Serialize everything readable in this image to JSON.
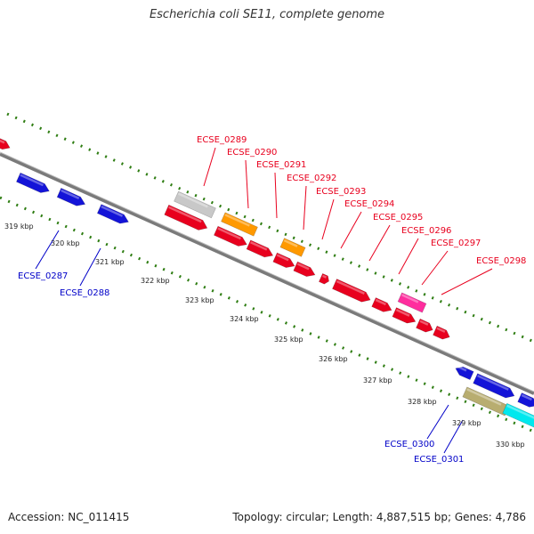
{
  "title": "Escherichia coli SE11, complete genome",
  "footer": {
    "accession": "Accession: NC_011415",
    "stats": "Topology: circular; Length: 4,887,515 bp; Genes: 4,786"
  },
  "colors": {
    "backbone": "#808080",
    "gc_dots": "#2e7d12",
    "label_red": "#e8001e",
    "label_blue": "#0000c8"
  },
  "ticks": [
    "319 kbp",
    "320 kbp",
    "321 kbp",
    "322 kbp",
    "323 kbp",
    "324 kbp",
    "325 kbp",
    "326 kbp",
    "327 kbp",
    "328 kbp",
    "329 kbp",
    "330 kbp"
  ],
  "gene_labels": [
    {
      "text": "ECSE_0289",
      "color": "red"
    },
    {
      "text": "ECSE_0290",
      "color": "red"
    },
    {
      "text": "ECSE_0291",
      "color": "red"
    },
    {
      "text": "ECSE_0292",
      "color": "red"
    },
    {
      "text": "ECSE_0293",
      "color": "red"
    },
    {
      "text": "ECSE_0294",
      "color": "red"
    },
    {
      "text": "ECSE_0295",
      "color": "red"
    },
    {
      "text": "ECSE_0296",
      "color": "red"
    },
    {
      "text": "ECSE_0297",
      "color": "red"
    },
    {
      "text": "ECSE_0298",
      "color": "red"
    },
    {
      "text": "ECSE_0287",
      "color": "blue"
    },
    {
      "text": "ECSE_0288",
      "color": "blue"
    },
    {
      "text": "ECSE_0300",
      "color": "blue"
    },
    {
      "text": "ECSE_0301",
      "color": "blue"
    }
  ]
}
